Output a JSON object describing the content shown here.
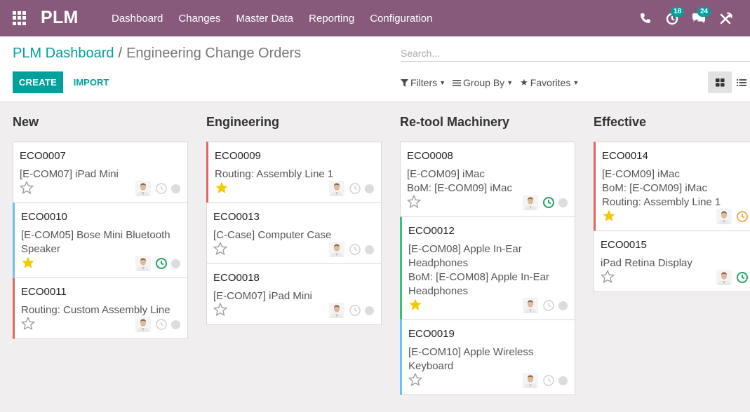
{
  "nav": {
    "brand": "PLM",
    "menu": [
      "Dashboard",
      "Changes",
      "Master Data",
      "Reporting",
      "Configuration"
    ],
    "activities_count": "18",
    "messages_count": "24"
  },
  "breadcrumb": {
    "parent": "PLM Dashboard",
    "separator": "/",
    "current": "Engineering Change Orders"
  },
  "buttons": {
    "create": "CREATE",
    "import": "IMPORT"
  },
  "search": {
    "placeholder": "Search..."
  },
  "filters": {
    "filters": "Filters",
    "group_by": "Group By",
    "favorites": "Favorites"
  },
  "columns": [
    {
      "title": "New",
      "cards": [
        {
          "name": "ECO0007",
          "lines": [
            "[E-COM07] iPad Mini"
          ],
          "starred": false,
          "clock": "grey",
          "border": "none"
        },
        {
          "name": "ECO0010",
          "lines": [
            "[E-COM05] Bose Mini Bluetooth",
            "Speaker"
          ],
          "starred": true,
          "clock": "green",
          "border": "blue"
        },
        {
          "name": "ECO0011",
          "lines": [
            "Routing: Custom Assembly Line"
          ],
          "starred": false,
          "clock": "grey",
          "border": "red"
        }
      ]
    },
    {
      "title": "Engineering",
      "cards": [
        {
          "name": "ECO0009",
          "lines": [
            "Routing: Assembly Line 1"
          ],
          "starred": true,
          "clock": "grey",
          "border": "red"
        },
        {
          "name": "ECO0013",
          "lines": [
            "[C-Case] Computer Case"
          ],
          "starred": false,
          "clock": "grey",
          "border": "none"
        },
        {
          "name": "ECO0018",
          "lines": [
            "[E-COM07] iPad Mini"
          ],
          "starred": false,
          "clock": "grey",
          "border": "none"
        }
      ]
    },
    {
      "title": "Re-tool Machinery",
      "cards": [
        {
          "name": "ECO0008",
          "lines": [
            "[E-COM09] iMac",
            "BoM: [E-COM09] iMac"
          ],
          "starred": false,
          "clock": "green",
          "border": "none"
        },
        {
          "name": "ECO0012",
          "lines": [
            "[E-COM08] Apple In-Ear",
            "Headphones",
            "BoM: [E-COM08] Apple In-Ear",
            "Headphones"
          ],
          "starred": true,
          "clock": "grey",
          "border": "green"
        },
        {
          "name": "ECO0019",
          "lines": [
            "[E-COM10] Apple Wireless",
            "Keyboard"
          ],
          "starred": false,
          "clock": "grey",
          "border": "blue"
        }
      ]
    },
    {
      "title": "Effective",
      "cards": [
        {
          "name": "ECO0014",
          "lines": [
            "[E-COM09] iMac",
            "BoM: [E-COM09] iMac",
            "Routing: Assembly Line 1"
          ],
          "starred": true,
          "clock": "orange",
          "border": "red"
        },
        {
          "name": "ECO0015",
          "lines": [
            "iPad Retina Display"
          ],
          "starred": false,
          "clock": "green",
          "border": "none"
        }
      ]
    }
  ],
  "colors": {
    "navbar": "#875a7b",
    "accent": "#00a09d",
    "star_on": "#f3cc00",
    "clock_green": "#21a366",
    "clock_orange": "#f0ad4e",
    "clock_grey": "#cfcfcf"
  }
}
